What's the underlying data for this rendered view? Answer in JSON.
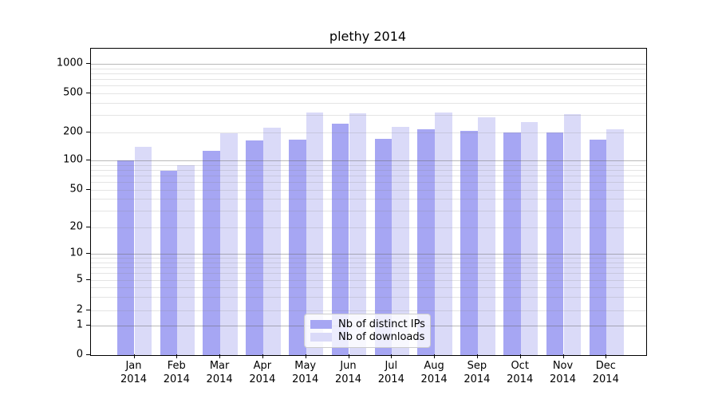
{
  "title": "plethy 2014",
  "chart_data": {
    "type": "bar",
    "title": "plethy 2014",
    "yscale": "symlog",
    "grid": true,
    "legend_position": "lower center",
    "categories": [
      "Jan",
      "Feb",
      "Mar",
      "Apr",
      "May",
      "Jun",
      "Jul",
      "Aug",
      "Sep",
      "Oct",
      "Nov",
      "Dec"
    ],
    "year": "2014",
    "yticks": [
      0,
      1,
      2,
      5,
      10,
      20,
      50,
      100,
      200,
      500,
      1000
    ],
    "ylim": [
      0,
      1400
    ],
    "series": [
      {
        "name": "Nb of distinct IPs",
        "color": "#a6a6f3",
        "values": [
          100,
          78,
          127,
          165,
          168,
          245,
          172,
          215,
          208,
          200,
          200,
          168
        ]
      },
      {
        "name": "Nb of downloads",
        "color": "#dadaf8",
        "values": [
          140,
          90,
          197,
          225,
          320,
          312,
          228,
          322,
          285,
          256,
          310,
          215
        ]
      }
    ]
  },
  "legend": {
    "items": [
      {
        "label": "Nb of distinct IPs",
        "color": "#a6a6f3"
      },
      {
        "label": "Nb of downloads",
        "color": "#dadaf8"
      }
    ]
  },
  "colors": {
    "dark_bar": "#a6a6f3",
    "light_bar": "#dadaf8",
    "spine": "#000000",
    "grid_major": "#bebebe",
    "grid_minor": "#e3e3e3",
    "legend_border": "#cccccc"
  }
}
